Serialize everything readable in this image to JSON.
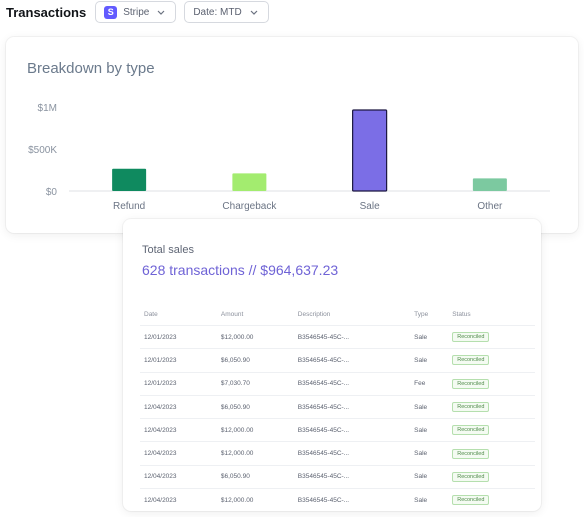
{
  "header": {
    "title": "Transactions",
    "source": {
      "label": "Stripe",
      "logo_letter": "S"
    },
    "date_filter": {
      "label": "Date: MTD"
    }
  },
  "chart_card": {
    "title": "Breakdown by type"
  },
  "chart_data": {
    "type": "bar",
    "title": "Breakdown by type",
    "categories": [
      "Refund",
      "Chargeback",
      "Sale",
      "Other"
    ],
    "values": [
      265000,
      210000,
      964637.23,
      150000
    ],
    "colors": [
      "#0f8a5f",
      "#a3ec6f",
      "#7b6ee6",
      "#7cc9a0"
    ],
    "y_ticks": [
      {
        "value": 0,
        "label": "$0"
      },
      {
        "value": 500000,
        "label": "$500K"
      },
      {
        "value": 1000000,
        "label": "$1M"
      }
    ],
    "ylim": [
      0,
      1000000
    ],
    "grid": false
  },
  "sales_card": {
    "label": "Total sales",
    "total": "628 transactions // $964,637.23"
  },
  "table": {
    "columns": [
      "Date",
      "Amount",
      "Description",
      "Type",
      "Status"
    ],
    "rows": [
      [
        "12/01/2023",
        "$12,000.00",
        "B3546545-45C-...",
        "Sale",
        "Reconciled"
      ],
      [
        "12/01/2023",
        "$6,050.90",
        "B3546545-45C-...",
        "Sale",
        "Reconciled"
      ],
      [
        "12/01/2023",
        "$7,030.70",
        "B3546545-45C-...",
        "Fee",
        "Reconciled"
      ],
      [
        "12/04/2023",
        "$6,050.90",
        "B3546545-45C-...",
        "Sale",
        "Reconciled"
      ],
      [
        "12/04/2023",
        "$12,000.00",
        "B3546545-45C-...",
        "Sale",
        "Reconciled"
      ],
      [
        "12/04/2023",
        "$12,000.00",
        "B3546545-45C-...",
        "Sale",
        "Reconciled"
      ],
      [
        "12/04/2023",
        "$6,050.90",
        "B3546545-45C-...",
        "Sale",
        "Reconciled"
      ],
      [
        "12/04/2023",
        "$12,000.00",
        "B3546545-45C-...",
        "Sale",
        "Reconciled"
      ]
    ]
  }
}
